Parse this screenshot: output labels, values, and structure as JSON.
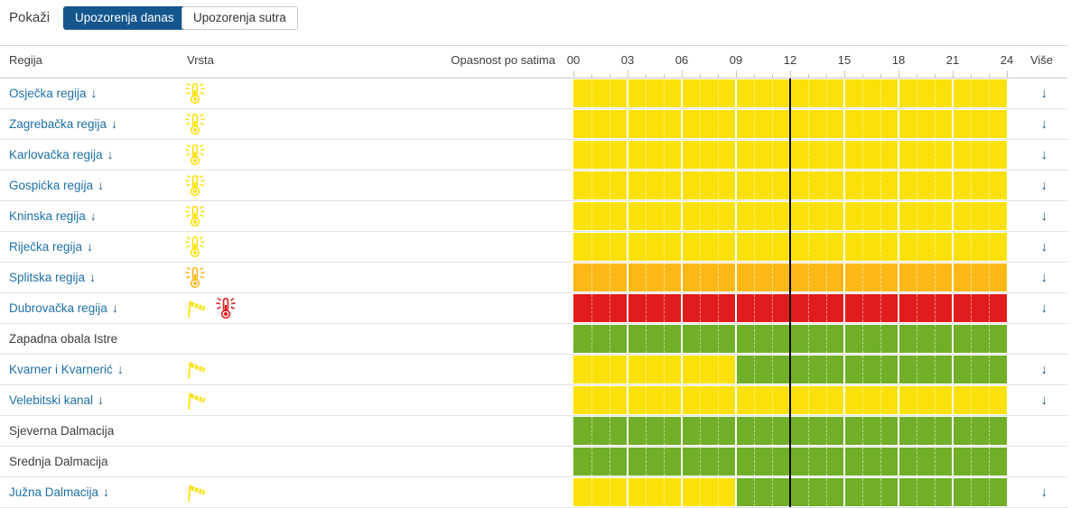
{
  "controls": {
    "show_label": "Pokaži",
    "buttons": [
      {
        "label": "Upozorenja danas",
        "active": true
      },
      {
        "label": "Upozorenja sutra",
        "active": false
      }
    ]
  },
  "colors": {
    "active_button": "#15568d",
    "link_blue": "#1d70a8",
    "arrow_blue": "#15568d",
    "yellow": "#fbe10a",
    "orange": "#fbb817",
    "red": "#e11c1c",
    "green": "#70af27",
    "timeline": "#000000"
  },
  "table": {
    "columns": {
      "region": "Regija",
      "type": "Vrsta",
      "hours_label": "Opasnost po satima",
      "more": "Više"
    },
    "hour_ticks": [
      "00",
      "03",
      "06",
      "09",
      "12",
      "15",
      "18",
      "21",
      "24"
    ],
    "current_time_hour": 12,
    "rows": [
      {
        "region": "Osječka regija",
        "link": true,
        "more": true,
        "icons": [
          {
            "name": "heat-warning-icon",
            "glyph": "thermometer",
            "severity": "yellow"
          }
        ],
        "segments": [
          {
            "from": 0,
            "to": 24,
            "level": "yellow"
          }
        ]
      },
      {
        "region": "Zagrebačka regija",
        "link": true,
        "more": true,
        "icons": [
          {
            "name": "heat-warning-icon",
            "glyph": "thermometer",
            "severity": "yellow"
          }
        ],
        "segments": [
          {
            "from": 0,
            "to": 24,
            "level": "yellow"
          }
        ]
      },
      {
        "region": "Karlovačka regija",
        "link": true,
        "more": true,
        "icons": [
          {
            "name": "heat-warning-icon",
            "glyph": "thermometer",
            "severity": "yellow"
          }
        ],
        "segments": [
          {
            "from": 0,
            "to": 24,
            "level": "yellow"
          }
        ]
      },
      {
        "region": "Gospićka regija",
        "link": true,
        "more": true,
        "icons": [
          {
            "name": "heat-warning-icon",
            "glyph": "thermometer",
            "severity": "yellow"
          }
        ],
        "segments": [
          {
            "from": 0,
            "to": 24,
            "level": "yellow"
          }
        ]
      },
      {
        "region": "Kninska regija",
        "link": true,
        "more": true,
        "icons": [
          {
            "name": "heat-warning-icon",
            "glyph": "thermometer",
            "severity": "yellow"
          }
        ],
        "segments": [
          {
            "from": 0,
            "to": 24,
            "level": "yellow"
          }
        ]
      },
      {
        "region": "Riječka regija",
        "link": true,
        "more": true,
        "icons": [
          {
            "name": "heat-warning-icon",
            "glyph": "thermometer",
            "severity": "yellow"
          }
        ],
        "segments": [
          {
            "from": 0,
            "to": 24,
            "level": "yellow"
          }
        ]
      },
      {
        "region": "Splitska regija",
        "link": true,
        "more": true,
        "icons": [
          {
            "name": "heat-warning-icon",
            "glyph": "thermometer",
            "severity": "orange"
          }
        ],
        "segments": [
          {
            "from": 0,
            "to": 24,
            "level": "orange"
          }
        ]
      },
      {
        "region": "Dubrovačka regija",
        "link": true,
        "more": true,
        "icons": [
          {
            "name": "wind-warning-icon",
            "glyph": "windsock",
            "severity": "yellow"
          },
          {
            "name": "heat-warning-icon",
            "glyph": "thermometer",
            "severity": "red"
          }
        ],
        "segments": [
          {
            "from": 0,
            "to": 24,
            "level": "red"
          }
        ]
      },
      {
        "region": "Zapadna obala Istre",
        "link": false,
        "more": false,
        "icons": [],
        "segments": [
          {
            "from": 0,
            "to": 24,
            "level": "green"
          }
        ]
      },
      {
        "region": "Kvarner i Kvarnerić",
        "link": true,
        "more": true,
        "icons": [
          {
            "name": "wind-warning-icon",
            "glyph": "windsock",
            "severity": "yellow"
          }
        ],
        "segments": [
          {
            "from": 0,
            "to": 9,
            "level": "yellow"
          },
          {
            "from": 9,
            "to": 24,
            "level": "green"
          }
        ]
      },
      {
        "region": "Velebitski kanal",
        "link": true,
        "more": true,
        "icons": [
          {
            "name": "wind-warning-icon",
            "glyph": "windsock",
            "severity": "yellow"
          }
        ],
        "segments": [
          {
            "from": 0,
            "to": 24,
            "level": "yellow"
          }
        ]
      },
      {
        "region": "Sjeverna Dalmacija",
        "link": false,
        "more": false,
        "icons": [],
        "segments": [
          {
            "from": 0,
            "to": 24,
            "level": "green"
          }
        ]
      },
      {
        "region": "Srednja Dalmacija",
        "link": false,
        "more": false,
        "icons": [],
        "segments": [
          {
            "from": 0,
            "to": 24,
            "level": "green"
          }
        ]
      },
      {
        "region": "Južna Dalmacija",
        "link": true,
        "more": true,
        "icons": [
          {
            "name": "wind-warning-icon",
            "glyph": "windsock",
            "severity": "yellow"
          }
        ],
        "segments": [
          {
            "from": 0,
            "to": 9,
            "level": "yellow"
          },
          {
            "from": 9,
            "to": 24,
            "level": "green"
          }
        ]
      }
    ]
  }
}
